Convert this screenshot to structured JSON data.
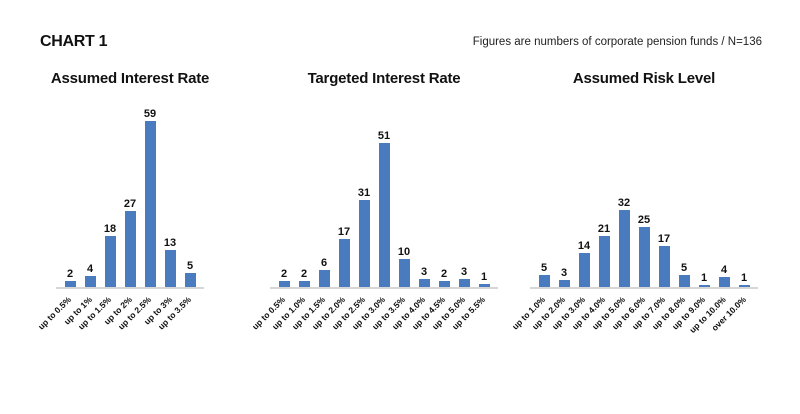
{
  "header": {
    "title": "CHART 1",
    "note": "Figures are numbers of corporate pension funds / N=136"
  },
  "colors": {
    "bar": "#4a7bbe",
    "axis": "#d6d6d6",
    "text": "#111111"
  },
  "chart_data": [
    {
      "type": "bar",
      "title": "Assumed Interest Rate",
      "categories": [
        "up to 0.5%",
        "up to 1%",
        "up to 1.5%",
        "up to 2%",
        "up to 2.5%",
        "up to 3%",
        "up to 3.5%"
      ],
      "values": [
        2,
        4,
        18,
        27,
        59,
        13,
        5
      ],
      "ylim": [
        0,
        60
      ],
      "xlabel": "",
      "ylabel": "",
      "grid": false,
      "legend": "none",
      "data_labels": true
    },
    {
      "type": "bar",
      "title": "Targeted Interest Rate",
      "categories": [
        "up to 0.5%",
        "up to 1.0%",
        "up to 1.5%",
        "up to 2.0%",
        "up to 2.5%",
        "up to 3.0%",
        "up to 3.5%",
        "up to 4.0%",
        "up to 4.5%",
        "up to 5.0%",
        "up to 5.5%"
      ],
      "values": [
        2,
        2,
        6,
        17,
        31,
        51,
        10,
        3,
        2,
        3,
        1
      ],
      "ylim": [
        0,
        60
      ],
      "xlabel": "",
      "ylabel": "",
      "grid": false,
      "legend": "none",
      "data_labels": true
    },
    {
      "type": "bar",
      "title": "Assumed Risk Level",
      "categories": [
        "up to 1.0%",
        "up to 2.0%",
        "up to 3.0%",
        "up to 4.0%",
        "up to 5.0%",
        "up to 6.0%",
        "up to 7.0%",
        "up to 8.0%",
        "up to 9.0%",
        "up to 10.0%",
        "over 10.0%"
      ],
      "values": [
        5,
        3,
        14,
        21,
        32,
        25,
        17,
        5,
        1,
        4,
        1
      ],
      "ylim": [
        0,
        70
      ],
      "xlabel": "",
      "ylabel": "",
      "grid": false,
      "legend": "none",
      "data_labels": true
    }
  ]
}
